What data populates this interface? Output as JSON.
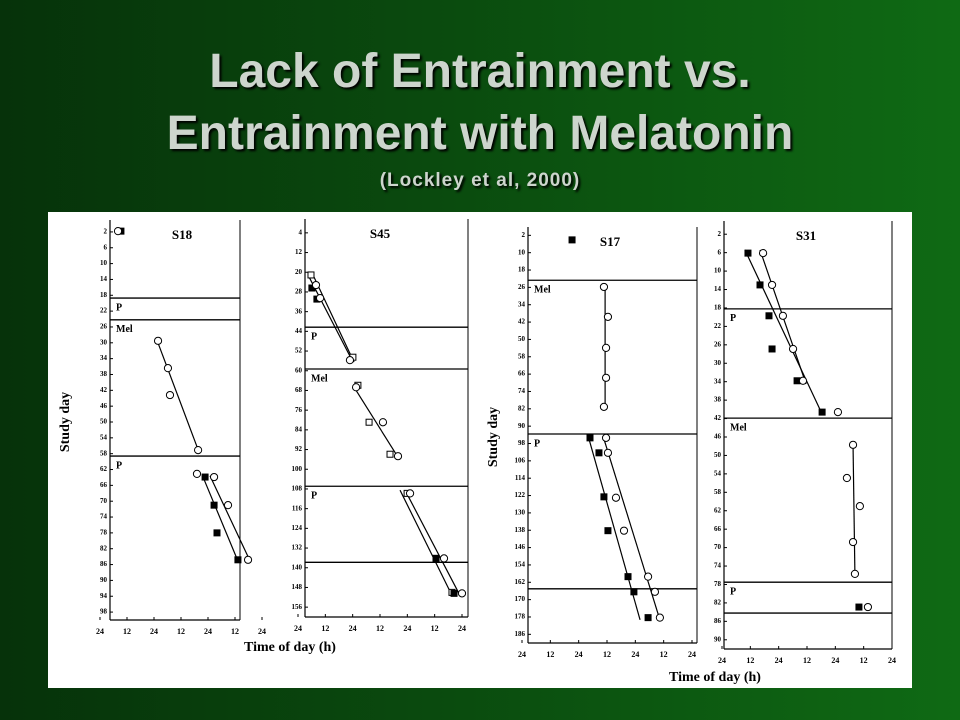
{
  "slide": {
    "title_lines": [
      "Lack of Entrainment vs.",
      "Entrainment with Melatonin"
    ],
    "citation": "(Lockley et al, 2000)"
  },
  "chart_data": [
    {
      "type": "scatter",
      "title": "S18",
      "ylabel": "Study day",
      "xlabel": "Time of day (h)",
      "y_inverted": true,
      "xlim": [
        0,
        72
      ],
      "ylim": [
        0,
        100
      ],
      "xticks": [
        {
          "value": 0,
          "label": "24"
        },
        {
          "value": 12,
          "label": "12"
        },
        {
          "value": 24,
          "label": "24"
        },
        {
          "value": 36,
          "label": "12"
        },
        {
          "value": 48,
          "label": "24"
        },
        {
          "value": 60,
          "label": "12"
        },
        {
          "value": 72,
          "label": "24"
        }
      ],
      "yticks": [
        2,
        6,
        10,
        14,
        18,
        22,
        26,
        30,
        34,
        38,
        42,
        46,
        50,
        54,
        58,
        62,
        66,
        70,
        74,
        78,
        82,
        86,
        90,
        94,
        98
      ],
      "dividers": [
        18.7,
        24.2,
        58.6
      ],
      "phase_labels": [
        {
          "label": "P",
          "from": 18.7
        },
        {
          "label": "Mel",
          "from": 24.2
        },
        {
          "label": "P",
          "from": 58.6
        }
      ],
      "series": [
        {
          "marker": "square-filled",
          "color": "#000000",
          "x": [
            9.3,
            46.7,
            50.7,
            52,
            61.3
          ],
          "values": [
            1.8,
            63.9,
            71,
            78,
            84.8
          ]
        },
        {
          "marker": "circle-open",
          "color": "#000000",
          "x": [
            8.0,
            25.8,
            30.2,
            31.1,
            43.6,
            43.1,
            50.7,
            56.9,
            65.8
          ],
          "values": [
            1.8,
            29.5,
            36.4,
            43.2,
            57.1,
            63.1,
            63.9,
            71,
            84.8
          ]
        }
      ],
      "fits": [
        {
          "x": [
            25.3,
            44
          ],
          "values": [
            29.3,
            57.6
          ]
        },
        {
          "x": [
            48.9,
            66.7
          ],
          "values": [
            63.6,
            85.1
          ]
        },
        {
          "x": [
            45.8,
            61.3
          ],
          "values": [
            63.9,
            85.1
          ]
        }
      ]
    },
    {
      "type": "scatter",
      "title": "S45",
      "y_inverted": true,
      "xlim": [
        0,
        72
      ],
      "ylim": [
        0,
        160
      ],
      "xticks": [
        {
          "value": 0,
          "label": "24"
        },
        {
          "value": 12,
          "label": "12"
        },
        {
          "value": 24,
          "label": "24"
        },
        {
          "value": 36,
          "label": "12"
        },
        {
          "value": 48,
          "label": "24"
        },
        {
          "value": 60,
          "label": "12"
        },
        {
          "value": 72,
          "label": "24"
        }
      ],
      "yticks": [
        4,
        12,
        20,
        28,
        36,
        44,
        52,
        60,
        68,
        76,
        84,
        92,
        100,
        108,
        116,
        124,
        132,
        140,
        148,
        156
      ],
      "dividers": [
        42.3,
        59.3,
        106.9,
        137.8
      ],
      "phase_labels": [
        {
          "label": "P",
          "from": 42.3
        },
        {
          "label": "Mel",
          "from": 59.3
        },
        {
          "label": "P",
          "from": 106.9
        }
      ],
      "series": [
        {
          "marker": "square-open",
          "color": "#000000",
          "x": [
            5.7,
            24.1,
            26.3,
            31.2,
            40.4,
            47.9,
            60.6,
            67.6
          ],
          "values": [
            21.1,
            54.5,
            65.9,
            80.9,
            93.9,
            109.8,
            136.2,
            150
          ]
        },
        {
          "marker": "square-filled",
          "color": "#000000",
          "x": [
            6.1,
            8.3,
            60.6,
            68.5
          ],
          "values": [
            26.4,
            30.9,
            136.2,
            150.4
          ]
        },
        {
          "marker": "circle-open",
          "color": "#000000",
          "x": [
            7.9,
            9.7,
            22.8,
            25.5,
            37.3,
            43.9,
            49.2,
            64.1,
            72
          ],
          "values": [
            25.2,
            30.5,
            55.7,
            66.7,
            80.9,
            94.7,
            109.8,
            136.2,
            150.4
          ]
        }
      ],
      "fits": [
        {
          "x": [
            4.4,
            23.7
          ],
          "values": [
            21.1,
            55.7
          ]
        },
        {
          "x": [
            6.6,
            24.6
          ],
          "values": [
            21.1,
            56.5
          ]
        },
        {
          "x": [
            24.1,
            43.9
          ],
          "values": [
            65.9,
            95.1
          ]
        },
        {
          "x": [
            44.8,
            67.6
          ],
          "values": [
            108.5,
            151.2
          ]
        },
        {
          "x": [
            47,
            71.1
          ],
          "values": [
            108.5,
            151.2
          ]
        }
      ]
    },
    {
      "type": "scatter",
      "title": "S17",
      "ylabel": "Study day",
      "y_inverted": true,
      "xlim": [
        0,
        72
      ],
      "ylim": [
        0,
        190
      ],
      "xticks": [
        {
          "value": 0,
          "label": "24"
        },
        {
          "value": 12,
          "label": "12"
        },
        {
          "value": 24,
          "label": "24"
        },
        {
          "value": 36,
          "label": "12"
        },
        {
          "value": 48,
          "label": "24"
        },
        {
          "value": 60,
          "label": "12"
        },
        {
          "value": 72,
          "label": "24"
        }
      ],
      "yticks": [
        2,
        10,
        18,
        26,
        34,
        42,
        50,
        58,
        66,
        74,
        82,
        90,
        98,
        106,
        114,
        122,
        130,
        138,
        146,
        154,
        162,
        170,
        178,
        186
      ],
      "dividers": [
        22.7,
        93.6,
        165
      ],
      "phase_labels": [
        {
          "label": "Mel",
          "from": 22.7
        },
        {
          "label": "P",
          "from": 93.6
        }
      ],
      "series": [
        {
          "marker": "square-filled",
          "color": "#000000",
          "x": [
            21.2,
            28.8,
            32.6,
            34.7,
            36.4,
            44.9,
            47.4,
            53.4
          ],
          "values": [
            4.1,
            95.4,
            102.3,
            122.6,
            138.2,
            159.4,
            166.4,
            178.3
          ]
        },
        {
          "marker": "circle-open",
          "color": "#000000",
          "x": [
            34.7,
            36.4,
            35.6,
            35.6,
            34.7,
            35.6,
            36.4,
            39.8,
            43.2,
            53.4,
            56.3,
            58.4
          ],
          "values": [
            25.8,
            39.6,
            53.9,
            67.7,
            81.1,
            95.4,
            102.3,
            123,
            138.2,
            159.4,
            166.4,
            178.3
          ]
        }
      ],
      "fits": [
        {
          "x": [
            35.2,
            35.2
          ],
          "values": [
            25.8,
            81.1
          ]
        },
        {
          "x": [
            28,
            50
          ],
          "values": [
            94.5,
            179.3
          ]
        },
        {
          "x": [
            34.3,
            58.4
          ],
          "values": [
            94.5,
            179.3
          ]
        }
      ]
    },
    {
      "type": "scatter",
      "title": "S31",
      "xlabel": "Time of day (h)",
      "y_inverted": true,
      "xlim": [
        0,
        72
      ],
      "ylim": [
        0,
        92
      ],
      "xticks": [
        {
          "value": 0,
          "label": "24"
        },
        {
          "value": 12,
          "label": "12"
        },
        {
          "value": 24,
          "label": "24"
        },
        {
          "value": 36,
          "label": "12"
        },
        {
          "value": 48,
          "label": "24"
        },
        {
          "value": 60,
          "label": "12"
        },
        {
          "value": 72,
          "label": "24"
        }
      ],
      "yticks": [
        2,
        6,
        10,
        14,
        18,
        22,
        26,
        30,
        34,
        38,
        42,
        46,
        50,
        54,
        58,
        62,
        66,
        70,
        74,
        78,
        82,
        86,
        90
      ],
      "dividers": [
        18.2,
        41.9,
        77.5,
        84.2
      ],
      "phase_labels": [
        {
          "label": "P",
          "from": 18.2
        },
        {
          "label": "Mel",
          "from": 41.9
        },
        {
          "label": "P",
          "from": 77.5
        }
      ],
      "series": [
        {
          "marker": "square-filled",
          "color": "#000000",
          "x": [
            11,
            16.1,
            19.9,
            21.2,
            31.8,
            42.4,
            58
          ],
          "values": [
            6.1,
            13,
            19.7,
            26.9,
            33.8,
            40.6,
            82.9
          ]
        },
        {
          "marker": "circle-open",
          "color": "#000000",
          "x": [
            17.4,
            21.2,
            25.8,
            30.1,
            34.3,
            49.1,
            55.5,
            52.9,
            58.4,
            55.5,
            56.3,
            61.8
          ],
          "values": [
            6.1,
            13,
            19.7,
            26.9,
            33.8,
            40.6,
            47.7,
            54.9,
            61,
            68.8,
            75.7,
            82.9
          ]
        }
      ],
      "fits": [
        {
          "x": [
            9.7,
            42.4
          ],
          "values": [
            5.4,
            41
          ]
        },
        {
          "x": [
            16.1,
            35.6
          ],
          "values": [
            5.4,
            34.5
          ]
        },
        {
          "x": [
            55.5,
            56.3
          ],
          "values": [
            47.7,
            76.1
          ]
        }
      ]
    }
  ]
}
